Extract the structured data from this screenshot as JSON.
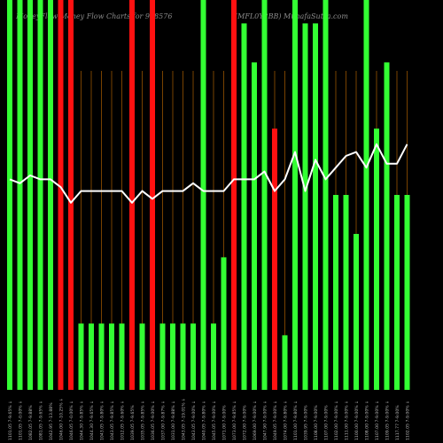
{
  "header": {
    "title_left": "MoneyFlow Money Flow Charts for 938576",
    "title_right": "(MFL0Y2BB) MunafaSutra.com"
  },
  "chart_data": {
    "type": "bar",
    "title": "MoneyFlow Money Flow Charts for 938576 (MFL0Y2BB) MunafaSutra.com",
    "categories": [
      "1101.05 7-9.65% ↓",
      "1101.05 7-0.00% ↓",
      "1082.05 7-9.88%",
      "1081.05 7-9.65% ↓",
      "1042.95 7-13.88%",
      "1046.00 7-10.25% ↓",
      "1046.05 7-0.00% ↓",
      "1044.30 7-9.85% ↓",
      "1044.30 7-9.65% ↓",
      "1043.05 7-9.80% ↓",
      "1043.05 7-9.85% ↓",
      "1012.05 7-9.60% ↓",
      "1039.05 7-9.65%",
      "1035.05 7-9.85% ↓",
      "1036.05 7-9.00% ↓",
      "1037.00 7-9.87% ↓",
      "1031.00 7-9.88% ↓",
      "1043.05 7-19.01% ↓",
      "1043.05 7-9.00% ↓",
      "1040.05 7-9.80% ↓",
      "1045.05 7-9.00% ↓",
      "1071.00 7-9.00%",
      "1073.00 7-9.85% ↓",
      "1072.00 7-9.00%",
      "1069.00 7-9.00% ↓",
      "1047.90 7-9.00% ↓",
      "1049.05 7-9.00% ↓",
      "1074.00 7-9.80% ↓",
      "1101.00 7-9.80% ↓",
      "1039.95 7-9.00%",
      "1108.00 7-9.00%",
      "1107.00 7-9.00%",
      "1102.00 7-9.00% ↓",
      "1111.00 7-9.00% ↓",
      "1100.00 7-9.00% ↓",
      "1108.00 7-9.00% ↓",
      "1107.00 7-9.00% ↓",
      "1109.05 7-9.00% ↓",
      "1117.77 7-9.00%",
      "1102.05 7-9.00% ↓"
    ],
    "bars": [
      {
        "value": 100,
        "color": "green"
      },
      {
        "value": 100,
        "color": "green"
      },
      {
        "value": 100,
        "color": "green"
      },
      {
        "value": 100,
        "color": "green"
      },
      {
        "value": 100,
        "color": "green"
      },
      {
        "value": 100,
        "color": "red"
      },
      {
        "value": 100,
        "color": "red"
      },
      {
        "value": 17,
        "color": "green"
      },
      {
        "value": 17,
        "color": "green"
      },
      {
        "value": 17,
        "color": "green"
      },
      {
        "value": 17,
        "color": "green"
      },
      {
        "value": 17,
        "color": "green"
      },
      {
        "value": 100,
        "color": "red"
      },
      {
        "value": 17,
        "color": "green"
      },
      {
        "value": 100,
        "color": "red"
      },
      {
        "value": 17,
        "color": "green"
      },
      {
        "value": 17,
        "color": "green"
      },
      {
        "value": 17,
        "color": "green"
      },
      {
        "value": 17,
        "color": "green"
      },
      {
        "value": 100,
        "color": "green"
      },
      {
        "value": 17,
        "color": "green"
      },
      {
        "value": 34,
        "color": "green"
      },
      {
        "value": 100,
        "color": "red"
      },
      {
        "value": 94,
        "color": "green"
      },
      {
        "value": 84,
        "color": "green"
      },
      {
        "value": 100,
        "color": "green"
      },
      {
        "value": 67,
        "color": "red"
      },
      {
        "value": 14,
        "color": "green"
      },
      {
        "value": 100,
        "color": "green"
      },
      {
        "value": 94,
        "color": "green"
      },
      {
        "value": 94,
        "color": "green"
      },
      {
        "value": 100,
        "color": "green"
      },
      {
        "value": 50,
        "color": "green"
      },
      {
        "value": 50,
        "color": "green"
      },
      {
        "value": 40,
        "color": "green"
      },
      {
        "value": 100,
        "color": "green"
      },
      {
        "value": 67,
        "color": "green"
      },
      {
        "value": 84,
        "color": "green"
      },
      {
        "value": 50,
        "color": "green"
      },
      {
        "value": 50,
        "color": "green"
      }
    ],
    "line": [
      54,
      53,
      55,
      54,
      54,
      52,
      48,
      51,
      51,
      51,
      51,
      51,
      48,
      51,
      49,
      51,
      51,
      51,
      53,
      51,
      51,
      51,
      54,
      54,
      54,
      56,
      51,
      54,
      61,
      51,
      59,
      54,
      57,
      60,
      61,
      57,
      63,
      58,
      58,
      63
    ],
    "ylim": [
      0,
      100
    ],
    "colors": {
      "background": "#000000",
      "green": "#33ff33",
      "red": "#ff1111",
      "line": "#ffffff",
      "gridline": "#c87000"
    }
  }
}
